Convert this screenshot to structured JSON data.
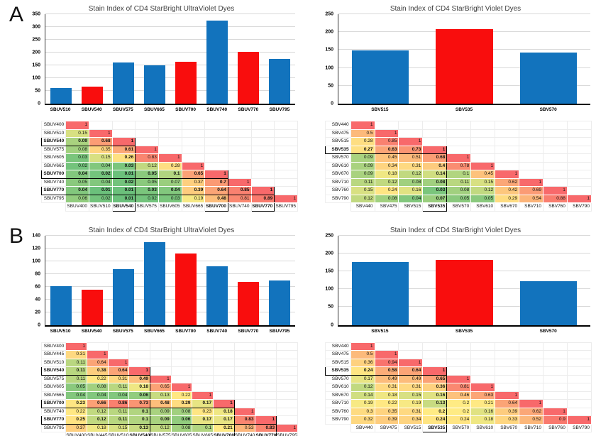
{
  "panel_labels": [
    "A",
    "B"
  ],
  "colors": {
    "bar_blue": "#1273BD",
    "bar_red": "#F90D0D",
    "gridline": "#D9D9D9",
    "axis": "#000000",
    "title_text": "#3F3F3F",
    "heat_low_green": "#63BE7B",
    "heat_mid_yellow": "#FFEB84",
    "heat_high_red": "#F8696B"
  },
  "chart_data": [
    {
      "panel": "A",
      "type": "bar",
      "title": "Stain Index of CD4 StarBright UltraViolet Dyes",
      "categories": [
        "SBUV510",
        "SBUV540",
        "SBUV575",
        "SBUV665",
        "SBUV700",
        "SBUV740",
        "SBUV770",
        "SBUV795"
      ],
      "values": [
        60,
        66,
        160,
        149,
        165,
        326,
        202,
        174
      ],
      "bar_colors": [
        "blue",
        "red",
        "blue",
        "blue",
        "red",
        "blue",
        "red",
        "blue"
      ],
      "xlabel": "",
      "ylabel": "",
      "ylim": [
        0,
        350
      ],
      "ytick_step": 50,
      "grid": true,
      "legend": "none"
    },
    {
      "panel": "A",
      "type": "bar",
      "title": "Stain Index of CD4 StarBright Violet Dyes",
      "categories": [
        "SBV515",
        "SBV535",
        "SBV570"
      ],
      "values": [
        148,
        208,
        143
      ],
      "bar_colors": [
        "blue",
        "red",
        "blue"
      ],
      "xlabel": "",
      "ylabel": "",
      "ylim": [
        0,
        250
      ],
      "ytick_step": 50,
      "grid": true,
      "legend": "none"
    },
    {
      "panel": "A",
      "type": "heatmap",
      "labels": [
        "SBUV400",
        "SBUV510",
        "SBUV540",
        "SBUV575",
        "SBUV605",
        "SBUV665",
        "SBUV700",
        "SBUV740",
        "SBUV770",
        "SBUV795"
      ],
      "highlighted": [
        "SBUV540",
        "SBUV700",
        "SBUV770"
      ],
      "rows": [
        [
          1
        ],
        [
          0.15,
          1
        ],
        [
          0.09,
          0.68,
          1
        ],
        [
          0.08,
          0.35,
          0.61,
          1
        ],
        [
          0.03,
          0.15,
          0.26,
          0.83,
          1
        ],
        [
          0.02,
          0.04,
          0.03,
          0.12,
          0.28,
          1
        ],
        [
          0.04,
          0.02,
          0.01,
          0.05,
          0.1,
          0.65,
          1
        ],
        [
          0.05,
          0.04,
          0.02,
          0.05,
          0.07,
          0.37,
          0.7,
          1
        ],
        [
          0.04,
          0.01,
          0.01,
          0.03,
          0.04,
          0.39,
          0.64,
          0.85,
          1
        ],
        [
          0.06,
          0.02,
          0.01,
          0.02,
          0.03,
          0.19,
          0.48,
          0.81,
          0.89,
          1
        ]
      ]
    },
    {
      "panel": "A",
      "type": "heatmap",
      "labels": [
        "SBV440",
        "SBV475",
        "SBV515",
        "SBV535",
        "SBV570",
        "SBV610",
        "SBV670",
        "SBV710",
        "SBV760",
        "SBV790"
      ],
      "highlighted": [
        "SBV535"
      ],
      "rows": [
        [
          1
        ],
        [
          0.5,
          1
        ],
        [
          0.28,
          0.85,
          1
        ],
        [
          0.27,
          0.63,
          0.73,
          1
        ],
        [
          0.09,
          0.45,
          0.51,
          0.68,
          1
        ],
        [
          0.09,
          0.34,
          0.31,
          0.4,
          0.78,
          1
        ],
        [
          0.09,
          0.18,
          0.12,
          0.14,
          0.1,
          0.45,
          1
        ],
        [
          0.11,
          0.12,
          0.08,
          0.08,
          0.11,
          0.15,
          0.62,
          1
        ],
        [
          0.15,
          0.24,
          0.16,
          0.03,
          0.08,
          0.12,
          0.42,
          0.69,
          1
        ],
        [
          0.12,
          0.08,
          0.04,
          0.07,
          0.05,
          0.05,
          0.29,
          0.54,
          0.88,
          1
        ]
      ]
    },
    {
      "panel": "B",
      "type": "bar",
      "title": "Stain Index of CD4 StarBright UltraViolet Dyes",
      "categories": [
        "SBUV510",
        "SBUV540",
        "SBUV575",
        "SBUV665",
        "SBUV700",
        "SBUV740",
        "SBUV770",
        "SBUV795"
      ],
      "values": [
        61,
        55,
        87,
        130,
        112,
        92,
        67,
        70
      ],
      "bar_colors": [
        "blue",
        "red",
        "blue",
        "blue",
        "red",
        "blue",
        "red",
        "blue"
      ],
      "xlabel": "",
      "ylabel": "",
      "ylim": [
        0,
        140
      ],
      "ytick_step": 20,
      "grid": true,
      "legend": "none"
    },
    {
      "panel": "B",
      "type": "bar",
      "title": "Stain Index of CD4 StarBright Violet Dyes",
      "categories": [
        "SBV515",
        "SBV535",
        "SBV570"
      ],
      "values": [
        176,
        181,
        122
      ],
      "bar_colors": [
        "blue",
        "red",
        "blue"
      ],
      "xlabel": "",
      "ylabel": "",
      "ylim": [
        0,
        250
      ],
      "ytick_step": 50,
      "grid": true,
      "legend": "none"
    },
    {
      "panel": "B",
      "type": "heatmap",
      "labels": [
        "SBUV400",
        "SBUV445",
        "SBUV510",
        "SBUV540",
        "SBUV575",
        "SBUV605",
        "SBUV665",
        "SBUV700",
        "SBUV740",
        "SBUV770",
        "SBUV795"
      ],
      "highlighted": [
        "SBUV540",
        "SBUV700",
        "SBUV770"
      ],
      "rows": [
        [
          1
        ],
        [
          0.31,
          1
        ],
        [
          0.11,
          0.64,
          1
        ],
        [
          0.11,
          0.38,
          0.64,
          1
        ],
        [
          0.11,
          0.22,
          0.31,
          0.49,
          1
        ],
        [
          0.05,
          0.08,
          0.11,
          0.18,
          0.65,
          1
        ],
        [
          0.04,
          0.04,
          0.04,
          0.06,
          0.13,
          0.22,
          1
        ],
        [
          0.23,
          0.66,
          0.86,
          0.73,
          0.48,
          0.29,
          0.17,
          1
        ],
        [
          0.22,
          0.12,
          0.11,
          0.1,
          0.09,
          0.08,
          0.23,
          0.18,
          1
        ],
        [
          0.25,
          0.12,
          0.11,
          0.1,
          0.09,
          0.06,
          0.17,
          0.17,
          0.83,
          1
        ],
        [
          0.37,
          0.18,
          0.15,
          0.13,
          0.12,
          0.08,
          0.1,
          0.21,
          0.53,
          0.83,
          1
        ]
      ]
    },
    {
      "panel": "B",
      "type": "heatmap",
      "labels": [
        "SBV440",
        "SBV475",
        "SBV515",
        "SBV535",
        "SBV570",
        "SBV610",
        "SBV670",
        "SBV710",
        "SBV760",
        "SBV790"
      ],
      "highlighted": [
        "SBV535"
      ],
      "rows": [
        [
          1
        ],
        [
          0.5,
          1
        ],
        [
          0.36,
          0.94,
          1
        ],
        [
          0.24,
          0.58,
          0.64,
          1
        ],
        [
          0.17,
          0.49,
          0.49,
          0.65,
          1
        ],
        [
          0.12,
          0.31,
          0.31,
          0.36,
          0.81,
          1
        ],
        [
          0.14,
          0.18,
          0.15,
          0.16,
          0.46,
          0.63,
          1
        ],
        [
          0.19,
          0.22,
          0.19,
          0.13,
          0.2,
          0.21,
          0.64,
          1
        ],
        [
          0.3,
          0.35,
          0.31,
          0.2,
          0.2,
          0.16,
          0.39,
          0.62,
          1
        ],
        [
          0.32,
          0.39,
          0.34,
          0.24,
          0.24,
          0.18,
          0.33,
          0.52,
          0.9,
          1
        ]
      ]
    }
  ]
}
